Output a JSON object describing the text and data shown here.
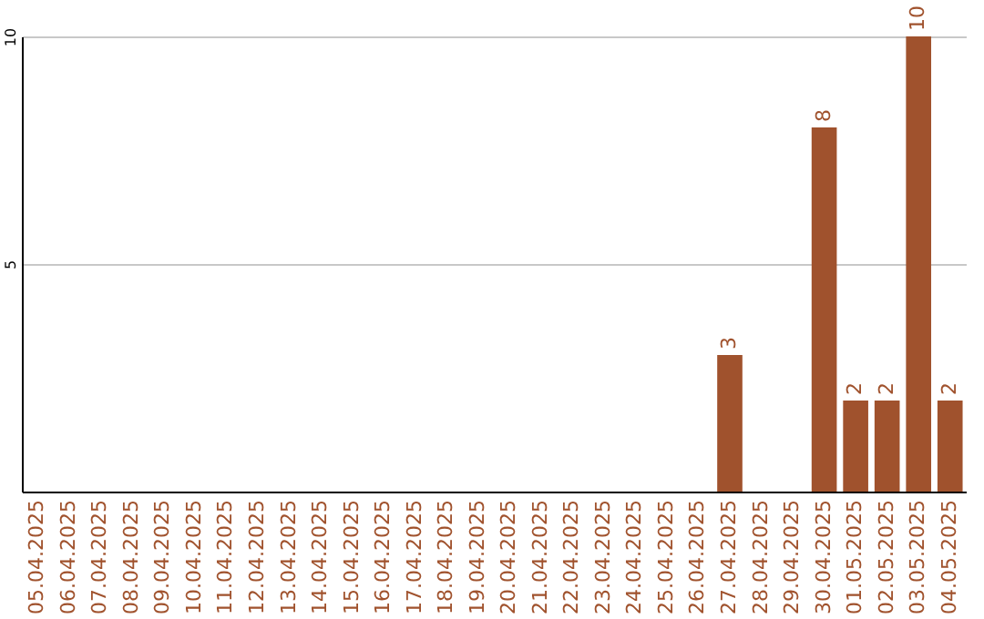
{
  "chart_data": {
    "type": "bar",
    "categories": [
      "05.04.2025",
      "06.04.2025",
      "07.04.2025",
      "08.04.2025",
      "09.04.2025",
      "10.04.2025",
      "11.04.2025",
      "12.04.2025",
      "13.04.2025",
      "14.04.2025",
      "15.04.2025",
      "16.04.2025",
      "17.04.2025",
      "18.04.2025",
      "19.04.2025",
      "20.04.2025",
      "21.04.2025",
      "22.04.2025",
      "23.04.2025",
      "24.04.2025",
      "25.04.2025",
      "26.04.2025",
      "27.04.2025",
      "28.04.2025",
      "29.04.2025",
      "30.04.2025",
      "01.05.2025",
      "02.05.2025",
      "03.05.2025",
      "04.05.2025"
    ],
    "values": [
      0,
      0,
      0,
      0,
      0,
      0,
      0,
      0,
      0,
      0,
      0,
      0,
      0,
      0,
      0,
      0,
      0,
      0,
      0,
      0,
      0,
      0,
      3,
      0,
      0,
      8,
      2,
      2,
      10,
      2
    ],
    "value_labels": [
      null,
      null,
      null,
      null,
      null,
      null,
      null,
      null,
      null,
      null,
      null,
      null,
      null,
      null,
      null,
      null,
      null,
      null,
      null,
      null,
      null,
      null,
      "3",
      null,
      null,
      "8",
      "2",
      "2",
      "10",
      "2"
    ],
    "color": "#a0522d",
    "ylim": [
      0,
      10
    ],
    "yticks": [
      5,
      10
    ],
    "grid": "y"
  }
}
